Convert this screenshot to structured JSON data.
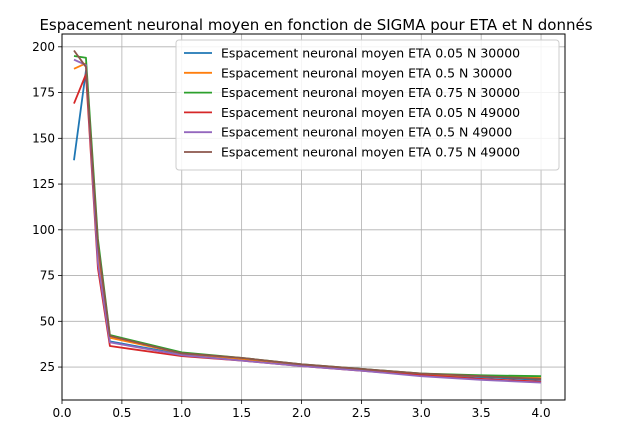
{
  "chart_data": {
    "type": "line",
    "title": "Espacement neuronal moyen en fonction de SIGMA pour ETA et N donnés",
    "xlabel": "",
    "ylabel": "",
    "x": [
      0.1,
      0.2,
      0.3,
      0.4,
      1.0,
      1.5,
      2.0,
      2.5,
      3.0,
      3.5,
      4.0
    ],
    "xlim": [
      -0.0,
      4.2
    ],
    "ylim": [
      7,
      207
    ],
    "xticks": [
      "0.0",
      "0.5",
      "1.0",
      "1.5",
      "2.0",
      "2.5",
      "3.0",
      "3.5",
      "4.0"
    ],
    "yticks": [
      "25",
      "50",
      "75",
      "100",
      "125",
      "150",
      "175",
      "200"
    ],
    "grid": true,
    "legend_position": "top-right",
    "series": [
      {
        "name": "Espacement neuronal moyen ETA 0.05 N 30000",
        "color": "#1f77b4",
        "values": [
          138,
          187,
          90,
          39,
          32,
          29.5,
          26,
          24,
          21,
          19.5,
          18
        ]
      },
      {
        "name": "Espacement neuronal moyen ETA 0.5 N 30000",
        "color": "#ff7f0e",
        "values": [
          188,
          191,
          88,
          41,
          32.5,
          29.5,
          26,
          23.5,
          21,
          20,
          19
        ]
      },
      {
        "name": "Espacement neuronal moyen ETA 0.75 N 30000",
        "color": "#2ca02c",
        "values": [
          195,
          194,
          95,
          42.5,
          33,
          30,
          26.5,
          24,
          21.5,
          20.5,
          20
        ]
      },
      {
        "name": "Espacement neuronal moyen ETA 0.05 N 49000",
        "color": "#d62728",
        "values": [
          169,
          185,
          79,
          36.5,
          31,
          28.5,
          25.5,
          23,
          20.5,
          18.5,
          17
        ]
      },
      {
        "name": "Espacement neuronal moyen ETA 0.5 N 49000",
        "color": "#9467bd",
        "values": [
          193,
          190,
          82,
          38.5,
          31.5,
          28.5,
          25.5,
          23,
          20,
          18,
          16.5
        ]
      },
      {
        "name": "Espacement neuronal moyen ETA 0.75 N 49000",
        "color": "#8c564b",
        "values": [
          198,
          189,
          92,
          42,
          32.5,
          30,
          26.5,
          24,
          21.5,
          20,
          18.5
        ]
      }
    ]
  }
}
